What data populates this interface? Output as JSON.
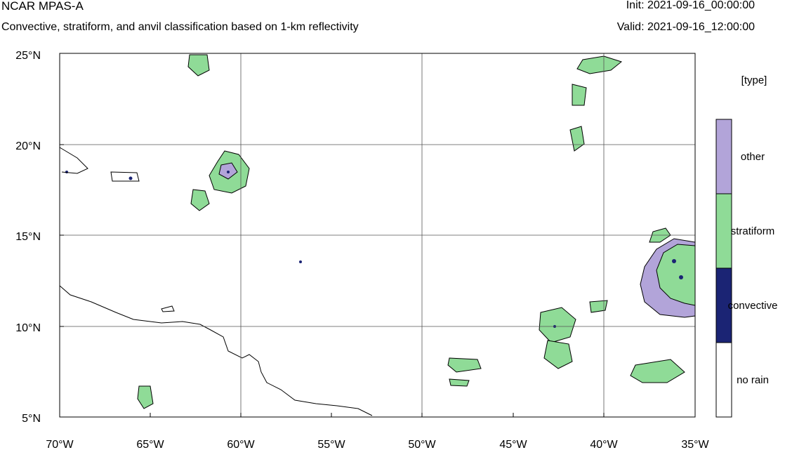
{
  "header": {
    "title": "NCAR MPAS-A",
    "subtitle": "Convective, stratiform, and anvil classification based on 1-km reflectivity",
    "init": "Init: 2021-09-16_00:00:00",
    "valid": "Valid: 2021-09-16_12:00:00"
  },
  "axes": {
    "lat_ticks": [
      "25°N",
      "20°N",
      "15°N",
      "10°N",
      "5°N"
    ],
    "lon_ticks": [
      "70°W",
      "65°W",
      "60°W",
      "55°W",
      "50°W",
      "45°W",
      "40°W",
      "35°W"
    ],
    "lat_range": [
      5,
      25
    ],
    "lon_range": [
      -70,
      -35
    ]
  },
  "legend": {
    "title": "[type]",
    "items": [
      {
        "label": "other",
        "color": "#b2a4d9"
      },
      {
        "label": "stratiform",
        "color": "#8fdb97"
      },
      {
        "label": "convective",
        "color": "#1b2474"
      },
      {
        "label": "no rain",
        "color": "#ffffff"
      }
    ]
  }
}
